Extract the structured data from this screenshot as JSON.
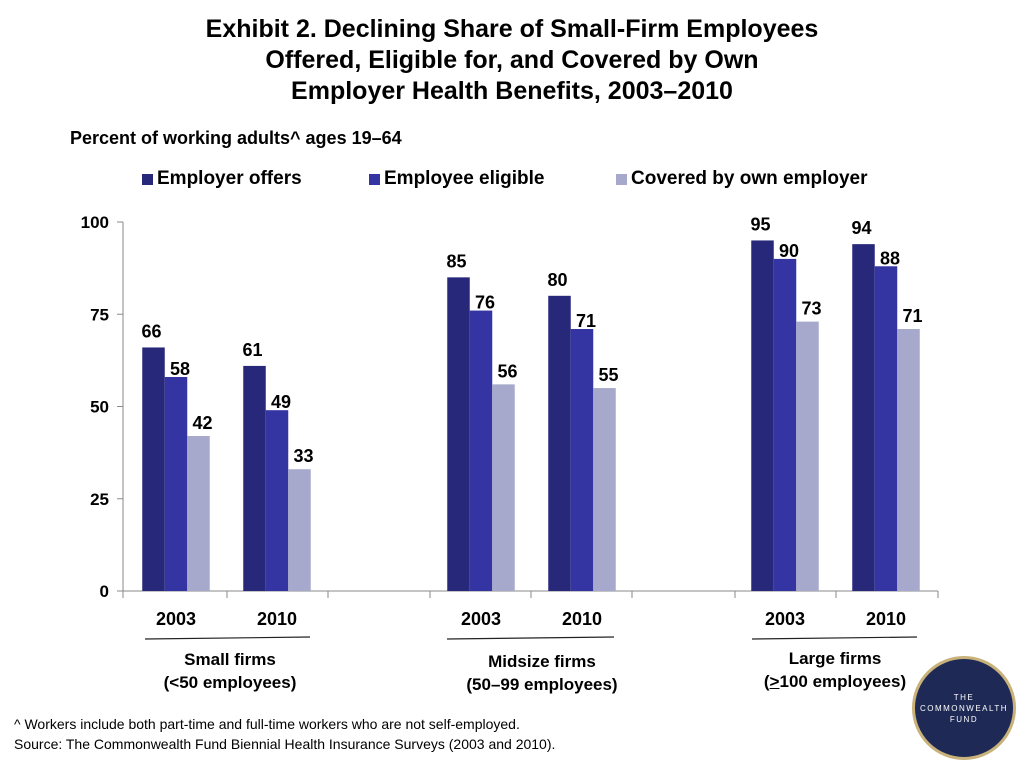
{
  "colors": {
    "employer_offers": "#27287a",
    "employee_eligible": "#3434a2",
    "covered": "#a7a9cc",
    "logo_bg": "#1e2a55",
    "logo_ring": "#c8b27a"
  },
  "chart_data": {
    "type": "bar",
    "title_lines": [
      "Exhibit 2. Declining Share of Small-Firm Employees",
      "Offered, Eligible for, and Covered by Own",
      "Employer Health Benefits, 2003–2010"
    ],
    "ylabel": "Percent of working adults^ ages 19–64",
    "ylim": [
      0,
      100
    ],
    "yticks": [
      0,
      25,
      50,
      75,
      100
    ],
    "legend_position": "top",
    "series": [
      {
        "name": "Employer offers"
      },
      {
        "name": "Employee eligible"
      },
      {
        "name": "Covered by own employer"
      }
    ],
    "groups": [
      {
        "label_line1": "Small firms",
        "label_line2": "(<50 employees)",
        "years": [
          {
            "year": "2003",
            "values": [
              66,
              58,
              42
            ]
          },
          {
            "year": "2010",
            "values": [
              61,
              49,
              33
            ]
          }
        ]
      },
      {
        "label_line1": "Midsize firms",
        "label_line2": "(50–99 employees)",
        "years": [
          {
            "year": "2003",
            "values": [
              85,
              76,
              56
            ]
          },
          {
            "year": "2010",
            "values": [
              80,
              71,
              55
            ]
          }
        ]
      },
      {
        "label_line1": "Large firms",
        "label_line2_prefix": "(",
        "label_line2_symbol": ">",
        "label_line2_suffix": "100 employees)",
        "years": [
          {
            "year": "2003",
            "values": [
              95,
              90,
              73
            ]
          },
          {
            "year": "2010",
            "values": [
              94,
              88,
              71
            ]
          }
        ]
      }
    ]
  },
  "footnotes": [
    "^ Workers include both part-time and full-time workers who are not self-employed.",
    "Source: The Commonwealth Fund Biennial Health Insurance Surveys (2003 and 2010)."
  ],
  "logo": {
    "line1": "THE",
    "line2": "COMMONWEALTH",
    "line3": "FUND"
  }
}
